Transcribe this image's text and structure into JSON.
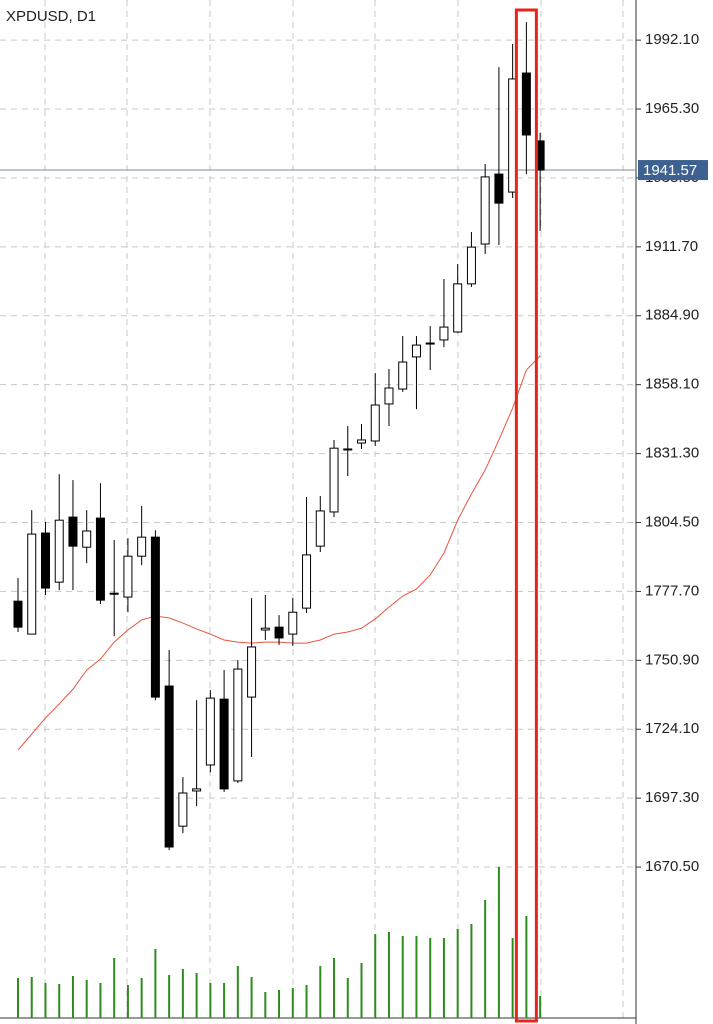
{
  "chart_data": {
    "type": "candlestick",
    "title": "XPDUSD, D1",
    "open": [
      1773.9,
      1761.1,
      1800.4,
      1781.3,
      1806.6,
      1794.9,
      1806.2,
      1777.0,
      1775.5,
      1791.4,
      1798.8,
      1740.9,
      1686.4,
      1700.1,
      1710.2,
      1735.8,
      1704.0,
      1736.6,
      1762.7,
      1763.8,
      1761.1,
      1771.2,
      1795.3,
      1808.6,
      1832.7,
      1835.4,
      1836.2,
      1850.6,
      1856.4,
      1868.9,
      1874.3,
      1875.5,
      1878.6,
      1897.3,
      1912.8,
      1940.0,
      1933.0,
      1979.3,
      1952.9
    ],
    "high": [
      1782.9,
      1809.3,
      1804.7,
      1823.3,
      1821.0,
      1809.3,
      1819.8,
      1797.7,
      1798.4,
      1810.9,
      1801.5,
      1754.9,
      1705.5,
      1735.4,
      1739.3,
      1747.1,
      1751.0,
      1775.1,
      1776.3,
      1768.5,
      1775.1,
      1814.4,
      1814.8,
      1836.6,
      1842.0,
      1842.8,
      1862.6,
      1864.2,
      1877.0,
      1877.0,
      1880.9,
      1899.2,
      1905.0,
      1917.5,
      1943.9,
      1981.6,
      1990.6,
      1999.1,
      1956.0
    ],
    "low": [
      1761.9,
      1761.1,
      1776.3,
      1778.2,
      1778.2,
      1788.7,
      1772.8,
      1760.3,
      1769.6,
      1787.9,
      1735.4,
      1677.1,
      1683.7,
      1694.2,
      1707.4,
      1699.7,
      1703.2,
      1713.3,
      1758.8,
      1756.9,
      1756.5,
      1769.3,
      1793.0,
      1806.6,
      1822.6,
      1833.1,
      1834.3,
      1842.0,
      1855.3,
      1848.6,
      1863.8,
      1872.7,
      1878.2,
      1896.1,
      1908.9,
      1912.4,
      1930.7,
      1940.0,
      1917.9
    ],
    "close": [
      1763.8,
      1800.0,
      1779.0,
      1805.4,
      1795.3,
      1801.2,
      1774.3,
      1776.6,
      1791.4,
      1798.8,
      1736.6,
      1678.3,
      1699.3,
      1700.9,
      1736.2,
      1700.9,
      1747.5,
      1756.1,
      1763.4,
      1759.6,
      1769.6,
      1791.9,
      1809.0,
      1833.4,
      1833.1,
      1836.6,
      1850.2,
      1856.8,
      1866.9,
      1873.5,
      1873.9,
      1880.5,
      1897.3,
      1911.6,
      1938.9,
      1928.7,
      1977.0,
      1955.2,
      1941.57
    ],
    "ma": [
      1716.0,
      1722.2,
      1728.5,
      1733.9,
      1739.7,
      1747.1,
      1751.4,
      1758.0,
      1762.7,
      1766.6,
      1768.1,
      1767.4,
      1765.4,
      1763.1,
      1761.1,
      1758.8,
      1758.0,
      1757.6,
      1758.0,
      1758.0,
      1757.6,
      1757.6,
      1758.8,
      1761.1,
      1761.9,
      1763.4,
      1767.0,
      1771.6,
      1775.9,
      1778.6,
      1784.1,
      1792.6,
      1805.4,
      1815.6,
      1824.9,
      1836.6,
      1849.0,
      1863.8,
      1869.3
    ],
    "volume": [
      40,
      41,
      35,
      34,
      42,
      38,
      35,
      60,
      33,
      40,
      69,
      43,
      49,
      45,
      35,
      35,
      52,
      41,
      26,
      28,
      30,
      33,
      52,
      60,
      40,
      55,
      84,
      86,
      82,
      82,
      80,
      80,
      89,
      94,
      118,
      151,
      80,
      102,
      22
    ],
    "volume_lim": [
      0,
      1018
    ],
    "ylim": [
      1611.8,
      2007.7
    ],
    "yticks": [
      {
        "value": 1992.1,
        "label": "1992.10"
      },
      {
        "value": 1965.3,
        "label": "1965.30"
      },
      {
        "value": 1938.5,
        "label": "1938.50"
      },
      {
        "value": 1911.7,
        "label": "1911.70"
      },
      {
        "value": 1884.9,
        "label": "1884.90"
      },
      {
        "value": 1858.1,
        "label": "1858.10"
      },
      {
        "value": 1831.3,
        "label": "1831.30"
      },
      {
        "value": 1804.5,
        "label": "1804.50"
      },
      {
        "value": 1777.7,
        "label": "1777.70"
      },
      {
        "value": 1750.9,
        "label": "1750.90"
      },
      {
        "value": 1724.1,
        "label": "1724.10"
      },
      {
        "value": 1697.3,
        "label": "1697.30"
      },
      {
        "value": 1670.5,
        "label": "1670.50"
      }
    ],
    "current_price": 1941.57,
    "grid": true,
    "up_color": "#ffffff",
    "down_color": "#000000",
    "ma_color": "#e8553f",
    "volume_color": "#2e8b1e",
    "current_price_color": "#3d6190",
    "highlight_index": 37
  }
}
